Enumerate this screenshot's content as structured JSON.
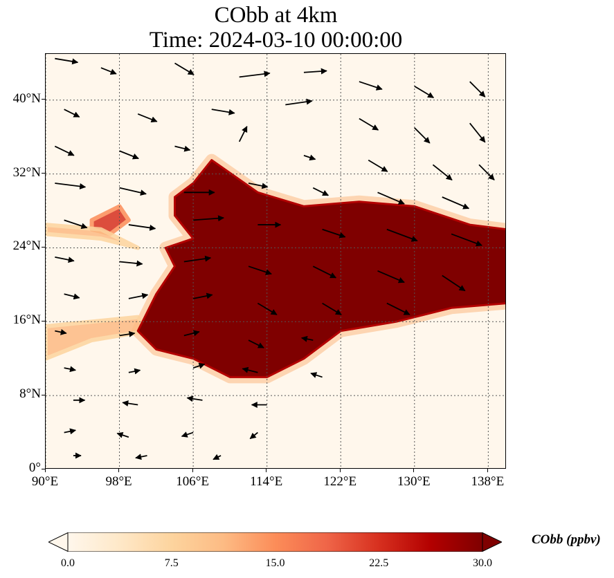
{
  "title": {
    "line1": "CObb at 4km",
    "line2": "Time: 2024-03-10 00:00:00"
  },
  "axes": {
    "x_ticks": [
      "90°E",
      "98°E",
      "106°E",
      "114°E",
      "122°E",
      "130°E",
      "138°E"
    ],
    "x_values": [
      90,
      98,
      106,
      114,
      122,
      130,
      138
    ],
    "y_ticks": [
      "40°N",
      "32°N",
      "24°N",
      "16°N",
      "8°N",
      "0°"
    ],
    "y_values": [
      40,
      32,
      24,
      16,
      8,
      0
    ],
    "lon_range": [
      90,
      140
    ],
    "lat_range": [
      0,
      45
    ],
    "gridlines": "dotted"
  },
  "colorbar": {
    "label": "CObb (ppbv)",
    "ticks": [
      "0.0",
      "7.5",
      "15.0",
      "22.5",
      "30.0"
    ],
    "tick_values": [
      0,
      7.5,
      15,
      22.5,
      30
    ],
    "range": [
      0,
      30
    ],
    "extend": "both",
    "colormap": "OrRd",
    "colors": [
      "#fff7ec",
      "#fee8c8",
      "#fdd49e",
      "#fdbb84",
      "#fc8d59",
      "#ef6548",
      "#d7301f",
      "#b30000",
      "#7f0000"
    ]
  },
  "chart_data": {
    "type": "heatmap",
    "variable": "CObb",
    "units": "ppbv",
    "level": "4km",
    "time": "2024-03-10 00:00:00",
    "overlay": "wind vectors",
    "plume": {
      "max_value": 30,
      "outline": [
        [
          108,
          33.5
        ],
        [
          113,
          30
        ],
        [
          118,
          28.5
        ],
        [
          124,
          29
        ],
        [
          130,
          28.5
        ],
        [
          136,
          26.5
        ],
        [
          140,
          26
        ],
        [
          140,
          18
        ],
        [
          134,
          17.5
        ],
        [
          128,
          16
        ],
        [
          122,
          15
        ],
        [
          118,
          12
        ],
        [
          114,
          10
        ],
        [
          110,
          10
        ],
        [
          106,
          12
        ],
        [
          102,
          13
        ],
        [
          100,
          15
        ],
        [
          102,
          19
        ],
        [
          104,
          22
        ],
        [
          103,
          24
        ],
        [
          106,
          25
        ],
        [
          104,
          27.5
        ],
        [
          104,
          29.5
        ],
        [
          106,
          31
        ],
        [
          108,
          33.5
        ]
      ]
    },
    "secondary_plumes": [
      {
        "value": 22,
        "outline": [
          [
            95,
            27
          ],
          [
            98,
            28.5
          ],
          [
            99,
            27
          ],
          [
            97,
            25.5
          ],
          [
            95,
            26
          ]
        ]
      },
      {
        "value": 12,
        "outline": [
          [
            90,
            26.5
          ],
          [
            96,
            26
          ],
          [
            100,
            24
          ],
          [
            96,
            25
          ],
          [
            90,
            25.5
          ]
        ]
      },
      {
        "value": 12,
        "outline": [
          [
            90,
            15.5
          ],
          [
            100,
            16.5
          ],
          [
            101,
            15
          ],
          [
            95,
            14
          ],
          [
            90,
            12
          ]
        ]
      }
    ],
    "wind_vectors": [
      {
        "lon": 91,
        "lat": 44.5,
        "u": 3,
        "v": -0.5
      },
      {
        "lon": 96,
        "lat": 43.5,
        "u": 2,
        "v": -0.8
      },
      {
        "lon": 104,
        "lat": 44,
        "u": 2.5,
        "v": -1.5
      },
      {
        "lon": 111,
        "lat": 42.5,
        "u": 4,
        "v": 0.5
      },
      {
        "lon": 118,
        "lat": 43,
        "u": 3,
        "v": 0.2
      },
      {
        "lon": 124,
        "lat": 42,
        "u": 3,
        "v": -1
      },
      {
        "lon": 130,
        "lat": 41.5,
        "u": 2.5,
        "v": -1.5
      },
      {
        "lon": 136,
        "lat": 42,
        "u": 2,
        "v": -2
      },
      {
        "lon": 92,
        "lat": 39,
        "u": 2,
        "v": -1
      },
      {
        "lon": 100,
        "lat": 38.5,
        "u": 2.5,
        "v": -1
      },
      {
        "lon": 108,
        "lat": 39,
        "u": 3,
        "v": -0.5
      },
      {
        "lon": 116,
        "lat": 39.5,
        "u": 3.5,
        "v": 0.5
      },
      {
        "lon": 124,
        "lat": 38,
        "u": 2.5,
        "v": -1.5
      },
      {
        "lon": 130,
        "lat": 37,
        "u": 2,
        "v": -2
      },
      {
        "lon": 136,
        "lat": 37.5,
        "u": 2,
        "v": -2.5
      },
      {
        "lon": 91,
        "lat": 35,
        "u": 2.5,
        "v": -1.2
      },
      {
        "lon": 98,
        "lat": 34.5,
        "u": 2.5,
        "v": -1
      },
      {
        "lon": 104,
        "lat": 35,
        "u": 2,
        "v": -0.5
      },
      {
        "lon": 111,
        "lat": 35.5,
        "u": 1,
        "v": 2
      },
      {
        "lon": 118,
        "lat": 34,
        "u": 1.5,
        "v": -0.5
      },
      {
        "lon": 125,
        "lat": 33.5,
        "u": 2.5,
        "v": -1.5
      },
      {
        "lon": 132,
        "lat": 33,
        "u": 2.5,
        "v": -2
      },
      {
        "lon": 137,
        "lat": 33,
        "u": 2,
        "v": -2
      },
      {
        "lon": 91,
        "lat": 31,
        "u": 4,
        "v": -0.5
      },
      {
        "lon": 98,
        "lat": 30.5,
        "u": 3.5,
        "v": -0.8
      },
      {
        "lon": 105,
        "lat": 30,
        "u": 4,
        "v": 0
      },
      {
        "lon": 112,
        "lat": 31,
        "u": 2.5,
        "v": -0.5
      },
      {
        "lon": 119,
        "lat": 30.5,
        "u": 2,
        "v": -1
      },
      {
        "lon": 126,
        "lat": 30,
        "u": 3.5,
        "v": -1.5
      },
      {
        "lon": 133,
        "lat": 29.5,
        "u": 3.5,
        "v": -1.5
      },
      {
        "lon": 92,
        "lat": 27,
        "u": 3,
        "v": -1
      },
      {
        "lon": 99,
        "lat": 26.5,
        "u": 3.5,
        "v": -0.5
      },
      {
        "lon": 106,
        "lat": 27,
        "u": 4,
        "v": 0.3
      },
      {
        "lon": 113,
        "lat": 26.5,
        "u": 3,
        "v": 0
      },
      {
        "lon": 120,
        "lat": 26,
        "u": 3,
        "v": -1
      },
      {
        "lon": 127,
        "lat": 26,
        "u": 4,
        "v": -1.5
      },
      {
        "lon": 134,
        "lat": 25.5,
        "u": 4,
        "v": -1.5
      },
      {
        "lon": 91,
        "lat": 23,
        "u": 2.5,
        "v": -0.5
      },
      {
        "lon": 98,
        "lat": 22.5,
        "u": 3,
        "v": -0.3
      },
      {
        "lon": 105,
        "lat": 22.5,
        "u": 3.5,
        "v": 0.5
      },
      {
        "lon": 112,
        "lat": 22,
        "u": 3,
        "v": -1
      },
      {
        "lon": 119,
        "lat": 22,
        "u": 3,
        "v": -1.5
      },
      {
        "lon": 126,
        "lat": 21.5,
        "u": 3.5,
        "v": -1.5
      },
      {
        "lon": 133,
        "lat": 21,
        "u": 3,
        "v": -2
      },
      {
        "lon": 92,
        "lat": 19,
        "u": 2,
        "v": -0.5
      },
      {
        "lon": 99,
        "lat": 18.5,
        "u": 2.5,
        "v": 0.5
      },
      {
        "lon": 106,
        "lat": 18.5,
        "u": 2.5,
        "v": 0.5
      },
      {
        "lon": 113,
        "lat": 18,
        "u": 2.5,
        "v": -1.5
      },
      {
        "lon": 120,
        "lat": 18,
        "u": 2.5,
        "v": -1.5
      },
      {
        "lon": 127,
        "lat": 18,
        "u": 3,
        "v": -1.5
      },
      {
        "lon": 91,
        "lat": 15,
        "u": 1.5,
        "v": -0.3
      },
      {
        "lon": 98,
        "lat": 14.5,
        "u": 2,
        "v": 0.3
      },
      {
        "lon": 105,
        "lat": 14.5,
        "u": 2,
        "v": 0.5
      },
      {
        "lon": 112,
        "lat": 14,
        "u": 2,
        "v": -1
      },
      {
        "lon": 119,
        "lat": 14,
        "u": -1.5,
        "v": 0.3
      },
      {
        "lon": 92,
        "lat": 11,
        "u": 1.5,
        "v": -0.3
      },
      {
        "lon": 99,
        "lat": 10.5,
        "u": 1.5,
        "v": 0.3
      },
      {
        "lon": 106,
        "lat": 11,
        "u": 1.5,
        "v": 0.5
      },
      {
        "lon": 113,
        "lat": 10.5,
        "u": -2,
        "v": 0.5
      },
      {
        "lon": 120,
        "lat": 10,
        "u": -1.5,
        "v": 0.5
      },
      {
        "lon": 93,
        "lat": 7.5,
        "u": 1.5,
        "v": 0
      },
      {
        "lon": 100,
        "lat": 7,
        "u": -2,
        "v": 0.3
      },
      {
        "lon": 107,
        "lat": 7.5,
        "u": -2,
        "v": 0.3
      },
      {
        "lon": 114,
        "lat": 7,
        "u": -2,
        "v": 0
      },
      {
        "lon": 92,
        "lat": 4,
        "u": 1.5,
        "v": 0.3
      },
      {
        "lon": 99,
        "lat": 3.5,
        "u": -1.5,
        "v": 0.5
      },
      {
        "lon": 106,
        "lat": 4,
        "u": -1.5,
        "v": -0.5
      },
      {
        "lon": 113,
        "lat": 4,
        "u": -1,
        "v": -0.8
      },
      {
        "lon": 93,
        "lat": 1.5,
        "u": 1,
        "v": 0
      },
      {
        "lon": 101,
        "lat": 1.5,
        "u": -1.5,
        "v": -0.3
      },
      {
        "lon": 109,
        "lat": 1.5,
        "u": -1,
        "v": -0.5
      }
    ]
  }
}
